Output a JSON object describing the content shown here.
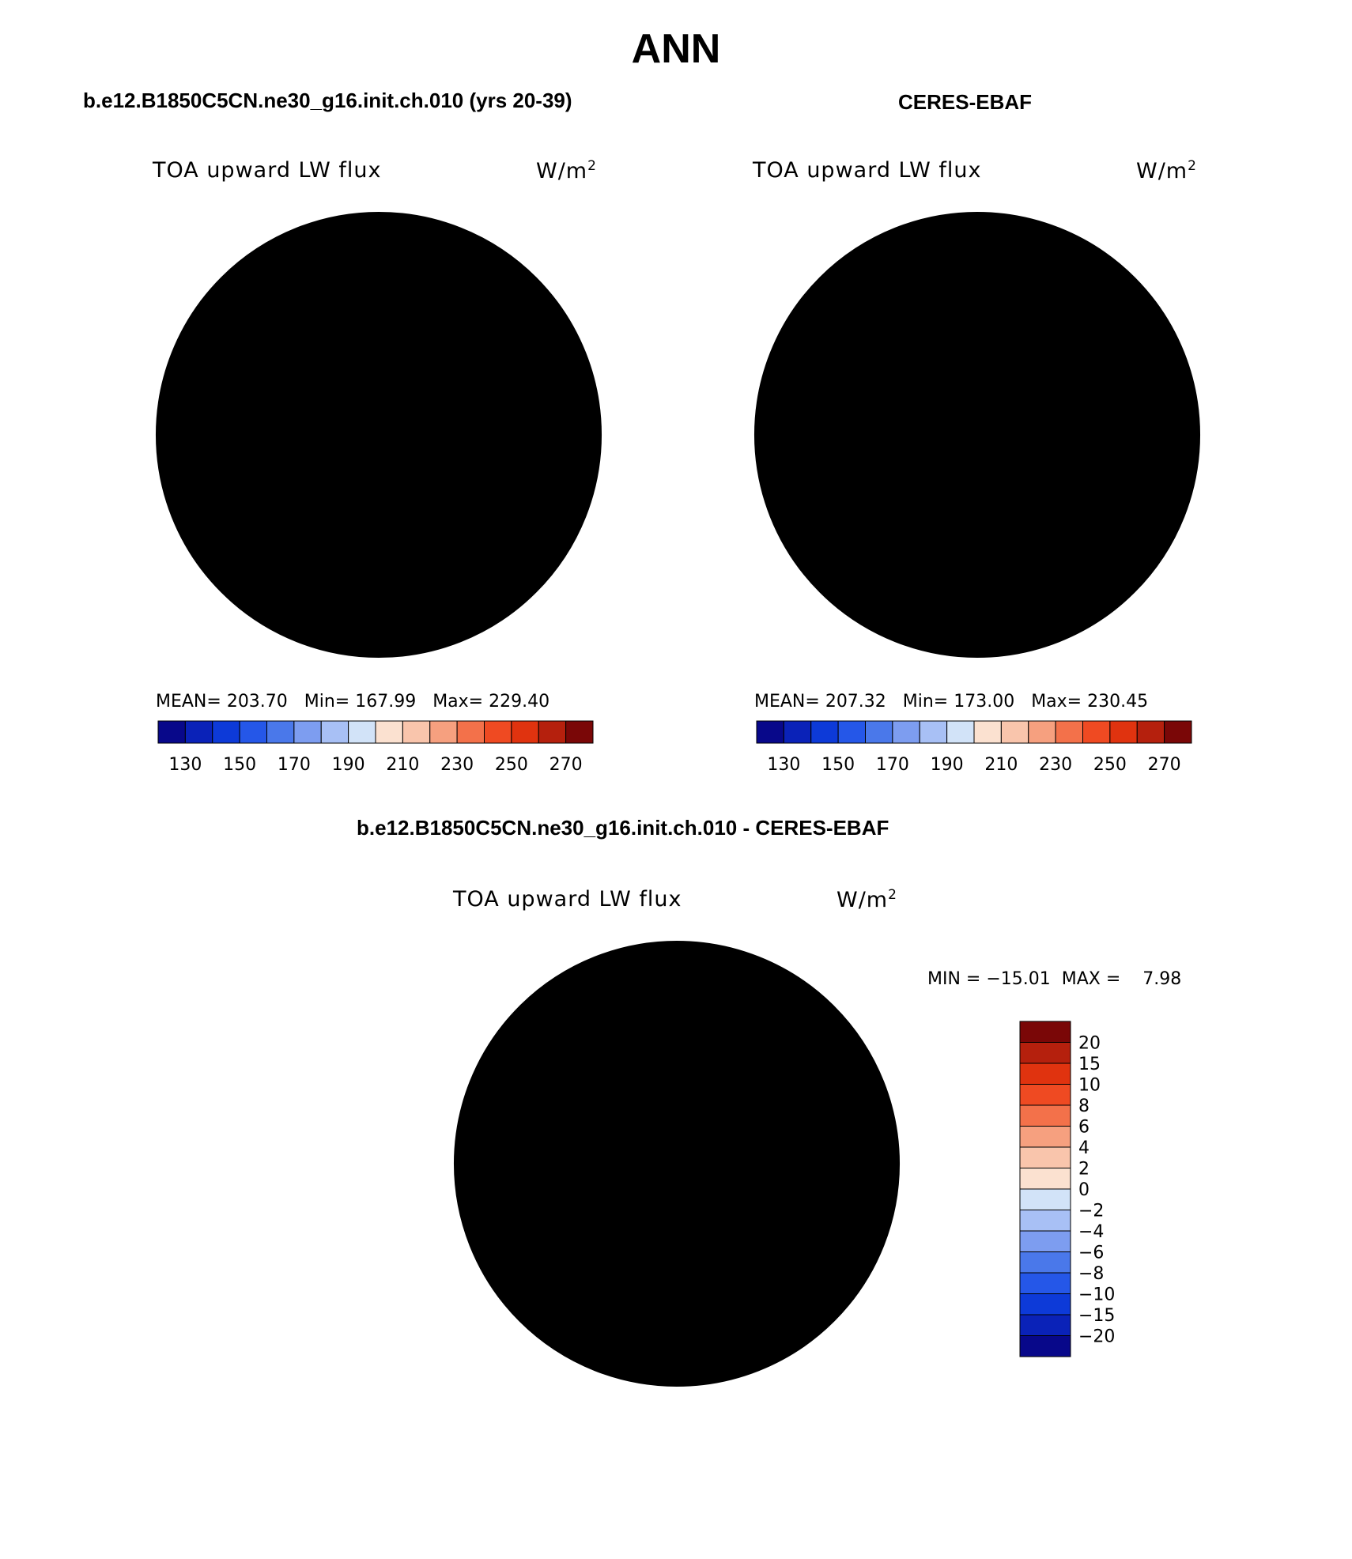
{
  "figure": {
    "title": "ANN",
    "panel_left_title": "b.e12.B1850C5CN.ne30_g16.init.ch.010 (yrs 20-39)",
    "panel_right_title": "CERES-EBAF",
    "panel_diff_title": "b.e12.B1850C5CN.ne30_g16.init.ch.010 - CERES-EBAF"
  },
  "panels": [
    {
      "variable": "TOA upward LW flux",
      "units": "W/m",
      "units_exp": "2",
      "stats": "MEAN= 203.70   Min= 167.99   Max= 229.40"
    },
    {
      "variable": "TOA upward LW flux",
      "units": "W/m",
      "units_exp": "2",
      "stats": "MEAN= 207.32   Min= 173.00   Max= 230.45"
    },
    {
      "variable": "TOA upward LW flux",
      "units": "W/m",
      "units_exp": "2",
      "stats": "MIN = −15.01  MAX =    7.98"
    }
  ],
  "colorbars": {
    "absolute": {
      "labels": [
        "130",
        "150",
        "170",
        "190",
        "210",
        "230",
        "250",
        "270"
      ],
      "colors": [
        "#08088a",
        "#0a22b8",
        "#0d3ad8",
        "#2557e8",
        "#4a78ea",
        "#7d9df0",
        "#a8c0f5",
        "#d2e3f8",
        "#fbe1d0",
        "#f9c5ac",
        "#f6a07f",
        "#f3714a",
        "#ef4a22",
        "#e0330f",
        "#b5200d",
        "#7a0707"
      ]
    },
    "difference": {
      "labels": [
        "20",
        "15",
        "10",
        "8",
        "6",
        "4",
        "2",
        "0",
        "−2",
        "−4",
        "−6",
        "−8",
        "−10",
        "−15",
        "−20"
      ],
      "colors": [
        "#7a0707",
        "#b5200d",
        "#e0330f",
        "#ef4a22",
        "#f3714a",
        "#f6a07f",
        "#f9c5ac",
        "#fbe1d0",
        "#d2e3f8",
        "#a8c0f5",
        "#7d9df0",
        "#4a78ea",
        "#2557e8",
        "#0d3ad8",
        "#0a22b8",
        "#08088a"
      ]
    }
  }
}
